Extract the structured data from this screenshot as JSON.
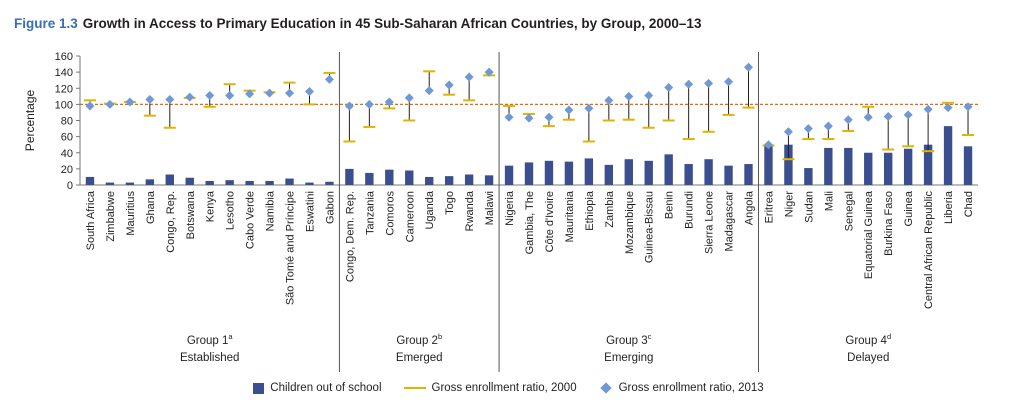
{
  "title": {
    "figure_label": "Figure 1.3",
    "text": "Growth in Access to Primary Education in 45 Sub-Saharan African Countries, by Group, 2000–13"
  },
  "colors": {
    "bars": "#3b4f8f",
    "ger2000": "#e0b400",
    "ger2013": "#6f98d4",
    "reference": "#e36c09",
    "separator": "#555555"
  },
  "legend": {
    "out_of_school": "Children out of school",
    "ger2000": "Gross enrollment ratio, 2000",
    "ger2013": "Gross enrollment ratio, 2013"
  },
  "chart_data": {
    "type": "bar",
    "ylabel": "Percentage",
    "ylim": [
      0,
      160
    ],
    "yticks": [
      0,
      20,
      40,
      60,
      80,
      100,
      120,
      140,
      160
    ],
    "reference_line": 100,
    "grid": false,
    "groups": [
      {
        "label": "Group 1",
        "superscript": "a",
        "sublabel": "Established",
        "countries": [
          "South Africa",
          "Zimbabwe",
          "Mauritius",
          "Ghana",
          "Congo, Rep.",
          "Botswana",
          "Kenya",
          "Lesotho",
          "Cabo Verde",
          "Namibia",
          "São Tomé and Príncipe",
          "Eswatini",
          "Gabon"
        ]
      },
      {
        "label": "Group 2",
        "superscript": "b",
        "sublabel": "Emerged",
        "countries": [
          "Congo, Dem. Rep.",
          "Tanzania",
          "Comoros",
          "Cameroon",
          "Uganda",
          "Togo",
          "Rwanda",
          "Malawi"
        ]
      },
      {
        "label": "Group 3",
        "superscript": "c",
        "sublabel": "Emerging",
        "countries": [
          "Nigeria",
          "Gambia, The",
          "Côte d'Ivoire",
          "Mauritania",
          "Ethiopia",
          "Zambia",
          "Mozambique",
          "Guinea-Bissau",
          "Benin",
          "Burundi",
          "Sierra Leone",
          "Madagascar",
          "Angola"
        ]
      },
      {
        "label": "Group 4",
        "superscript": "d",
        "sublabel": "Delayed",
        "countries": [
          "Eritrea",
          "Niger",
          "Sudan",
          "Mali",
          "Senegal",
          "Equatorial Guinea",
          "Burkina Faso",
          "Guinea",
          "Central African Republic",
          "Liberia",
          "Chad"
        ]
      }
    ],
    "series": [
      {
        "name": "Children out of school",
        "type": "bar",
        "values": [
          10,
          3,
          3,
          7,
          13,
          9,
          5,
          6,
          5,
          5,
          8,
          3,
          4,
          20,
          15,
          19,
          18,
          10,
          11,
          13,
          12,
          24,
          28,
          30,
          29,
          33,
          25,
          32,
          30,
          38,
          26,
          32,
          24,
          26,
          50,
          50,
          21,
          46,
          46,
          40,
          40,
          45,
          50,
          73,
          48
        ]
      },
      {
        "name": "Gross enrollment ratio, 2000",
        "type": "marker-line",
        "values": [
          105,
          101,
          103,
          86,
          71,
          108,
          97,
          125,
          117,
          115,
          127,
          100,
          139,
          54,
          72,
          95,
          80,
          141,
          112,
          105,
          136,
          98,
          88,
          73,
          81,
          54,
          80,
          81,
          71,
          80,
          57,
          66,
          87,
          96,
          49,
          32,
          57,
          57,
          67,
          97,
          44,
          48,
          42,
          102,
          62
        ]
      },
      {
        "name": "Gross enrollment ratio, 2013",
        "type": "diamond",
        "values": [
          98,
          100,
          103,
          106,
          106,
          109,
          111,
          111,
          113,
          114,
          114,
          116,
          131,
          98,
          100,
          103,
          108,
          117,
          124,
          134,
          140,
          84,
          83,
          84,
          93,
          95,
          105,
          110,
          111,
          121,
          125,
          126,
          128,
          146,
          50,
          66,
          70,
          73,
          81,
          84,
          85,
          87,
          94,
          96,
          97
        ]
      }
    ]
  }
}
